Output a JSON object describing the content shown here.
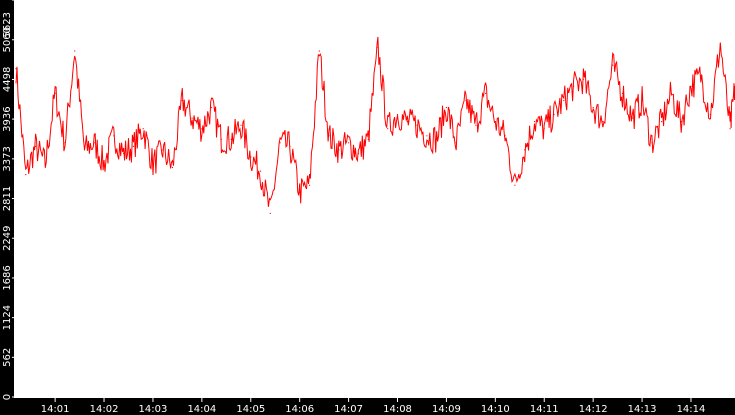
{
  "chart_data": {
    "type": "line",
    "title": "",
    "xlabel": "",
    "ylabel": "",
    "ylim": [
      0,
      5623
    ],
    "xlim_minutes": [
      840.2,
      854.9
    ],
    "y_ticks": [
      {
        "value": 0,
        "label": "0"
      },
      {
        "value": 562,
        "label": "562"
      },
      {
        "value": 1124,
        "label": "1124"
      },
      {
        "value": 1686,
        "label": "1686"
      },
      {
        "value": 2249,
        "label": "2249"
      },
      {
        "value": 2811,
        "label": "2811"
      },
      {
        "value": 3373,
        "label": "3373"
      },
      {
        "value": 3936,
        "label": "3936"
      },
      {
        "value": 4498,
        "label": "4498"
      },
      {
        "value": 5060,
        "label": "5060"
      },
      {
        "value": 5623,
        "label": "5623"
      }
    ],
    "x_ticks": [
      {
        "value": "14:01",
        "label": "14:01"
      },
      {
        "value": "14:02",
        "label": "14:02"
      },
      {
        "value": "14:03",
        "label": "14:03"
      },
      {
        "value": "14:04",
        "label": "14:04"
      },
      {
        "value": "14:05",
        "label": "14:05"
      },
      {
        "value": "14:06",
        "label": "14:06"
      },
      {
        "value": "14:07",
        "label": "14:07"
      },
      {
        "value": "14:08",
        "label": "14:08"
      },
      {
        "value": "14:09",
        "label": "14:09"
      },
      {
        "value": "14:10",
        "label": "14:10"
      },
      {
        "value": "14:11",
        "label": "14:11"
      },
      {
        "value": "14:12",
        "label": "14:12"
      },
      {
        "value": "14:13",
        "label": "14:13"
      },
      {
        "value": "14:14",
        "label": "14:14"
      }
    ],
    "series": [
      {
        "color": "#ff0000",
        "x": [
          "14:00:12",
          "14:00:24",
          "14:00:36",
          "14:00:48",
          "14:01:00",
          "14:01:12",
          "14:01:24",
          "14:01:36",
          "14:01:48",
          "14:02:00",
          "14:02:12",
          "14:02:24",
          "14:02:36",
          "14:02:48",
          "14:03:00",
          "14:03:12",
          "14:03:24",
          "14:03:36",
          "14:03:48",
          "14:04:00",
          "14:04:12",
          "14:04:24",
          "14:04:36",
          "14:04:48",
          "14:05:00",
          "14:05:12",
          "14:05:24",
          "14:05:36",
          "14:05:48",
          "14:06:00",
          "14:06:12",
          "14:06:24",
          "14:06:36",
          "14:06:48",
          "14:07:00",
          "14:07:12",
          "14:07:24",
          "14:07:36",
          "14:07:48",
          "14:08:00",
          "14:08:12",
          "14:08:24",
          "14:08:36",
          "14:08:48",
          "14:09:00",
          "14:09:12",
          "14:09:24",
          "14:09:36",
          "14:09:48",
          "14:10:00",
          "14:10:12",
          "14:10:24",
          "14:10:36",
          "14:10:48",
          "14:11:00",
          "14:11:12",
          "14:11:24",
          "14:11:36",
          "14:11:48",
          "14:12:00",
          "14:12:12",
          "14:12:24",
          "14:12:36",
          "14:12:48",
          "14:13:00",
          "14:13:12",
          "14:13:24",
          "14:13:36",
          "14:13:48",
          "14:14:00",
          "14:14:12",
          "14:14:24",
          "14:14:36",
          "14:14:48",
          "14:14:54"
        ],
        "values": [
          4650,
          3150,
          3550,
          3300,
          4300,
          3600,
          4900,
          3500,
          3600,
          3300,
          3700,
          3450,
          3550,
          3800,
          3300,
          3500,
          3250,
          4200,
          3950,
          3800,
          4100,
          3650,
          3650,
          3850,
          3400,
          3200,
          2600,
          3600,
          3550,
          2900,
          3000,
          4900,
          3700,
          3500,
          3600,
          3450,
          3650,
          4950,
          3800,
          4000,
          3900,
          3850,
          3700,
          3650,
          4100,
          3600,
          4200,
          3850,
          4300,
          3900,
          3700,
          3000,
          3500,
          3900,
          3800,
          4000,
          4200,
          4400,
          4500,
          4100,
          3900,
          4700,
          4300,
          3950,
          4200,
          3600,
          3900,
          4300,
          3900,
          4400,
          4550,
          4000,
          5000,
          3800,
          4400
        ]
      }
    ]
  }
}
